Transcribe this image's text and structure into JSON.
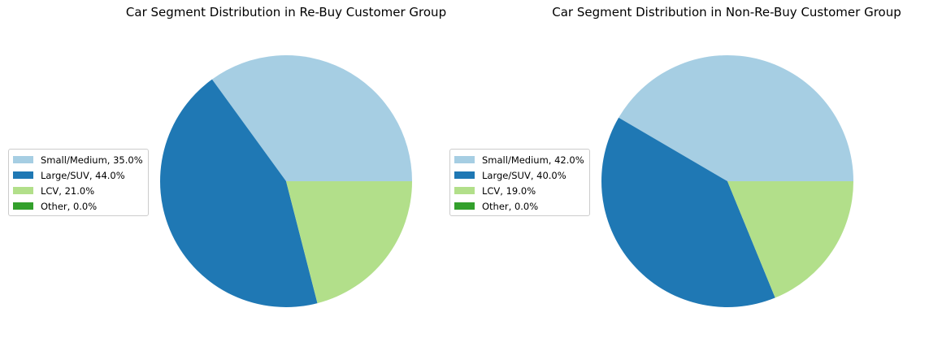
{
  "chart_data": [
    {
      "type": "pie",
      "title": "Car Segment Distribution in Re-Buy Customer Group",
      "categories": [
        "Small/Medium",
        "Large/SUV",
        "LCV",
        "Other"
      ],
      "values": [
        35.0,
        44.0,
        21.0,
        0.0
      ],
      "legend_labels": [
        "Small/Medium, 35.0%",
        "Large/SUV, 44.0%",
        "LCV, 21.0%",
        "Other, 0.0%"
      ],
      "colors": [
        "#a6cee3",
        "#1f78b4",
        "#b2df8a",
        "#33a02c"
      ],
      "legend_placement": "center-left",
      "start_angle": 0,
      "direction": "counterclockwise"
    },
    {
      "type": "pie",
      "title": "Car Segment Distribution in Non-Re-Buy Customer Group",
      "categories": [
        "Small/Medium",
        "Large/SUV",
        "LCV",
        "Other"
      ],
      "values": [
        42.0,
        40.0,
        19.0,
        0.0
      ],
      "legend_labels": [
        "Small/Medium, 42.0%",
        "Large/SUV, 40.0%",
        "LCV, 19.0%",
        "Other, 0.0%"
      ],
      "colors": [
        "#a6cee3",
        "#1f78b4",
        "#b2df8a",
        "#33a02c"
      ],
      "legend_placement": "center-left",
      "start_angle": 0,
      "direction": "counterclockwise"
    }
  ]
}
